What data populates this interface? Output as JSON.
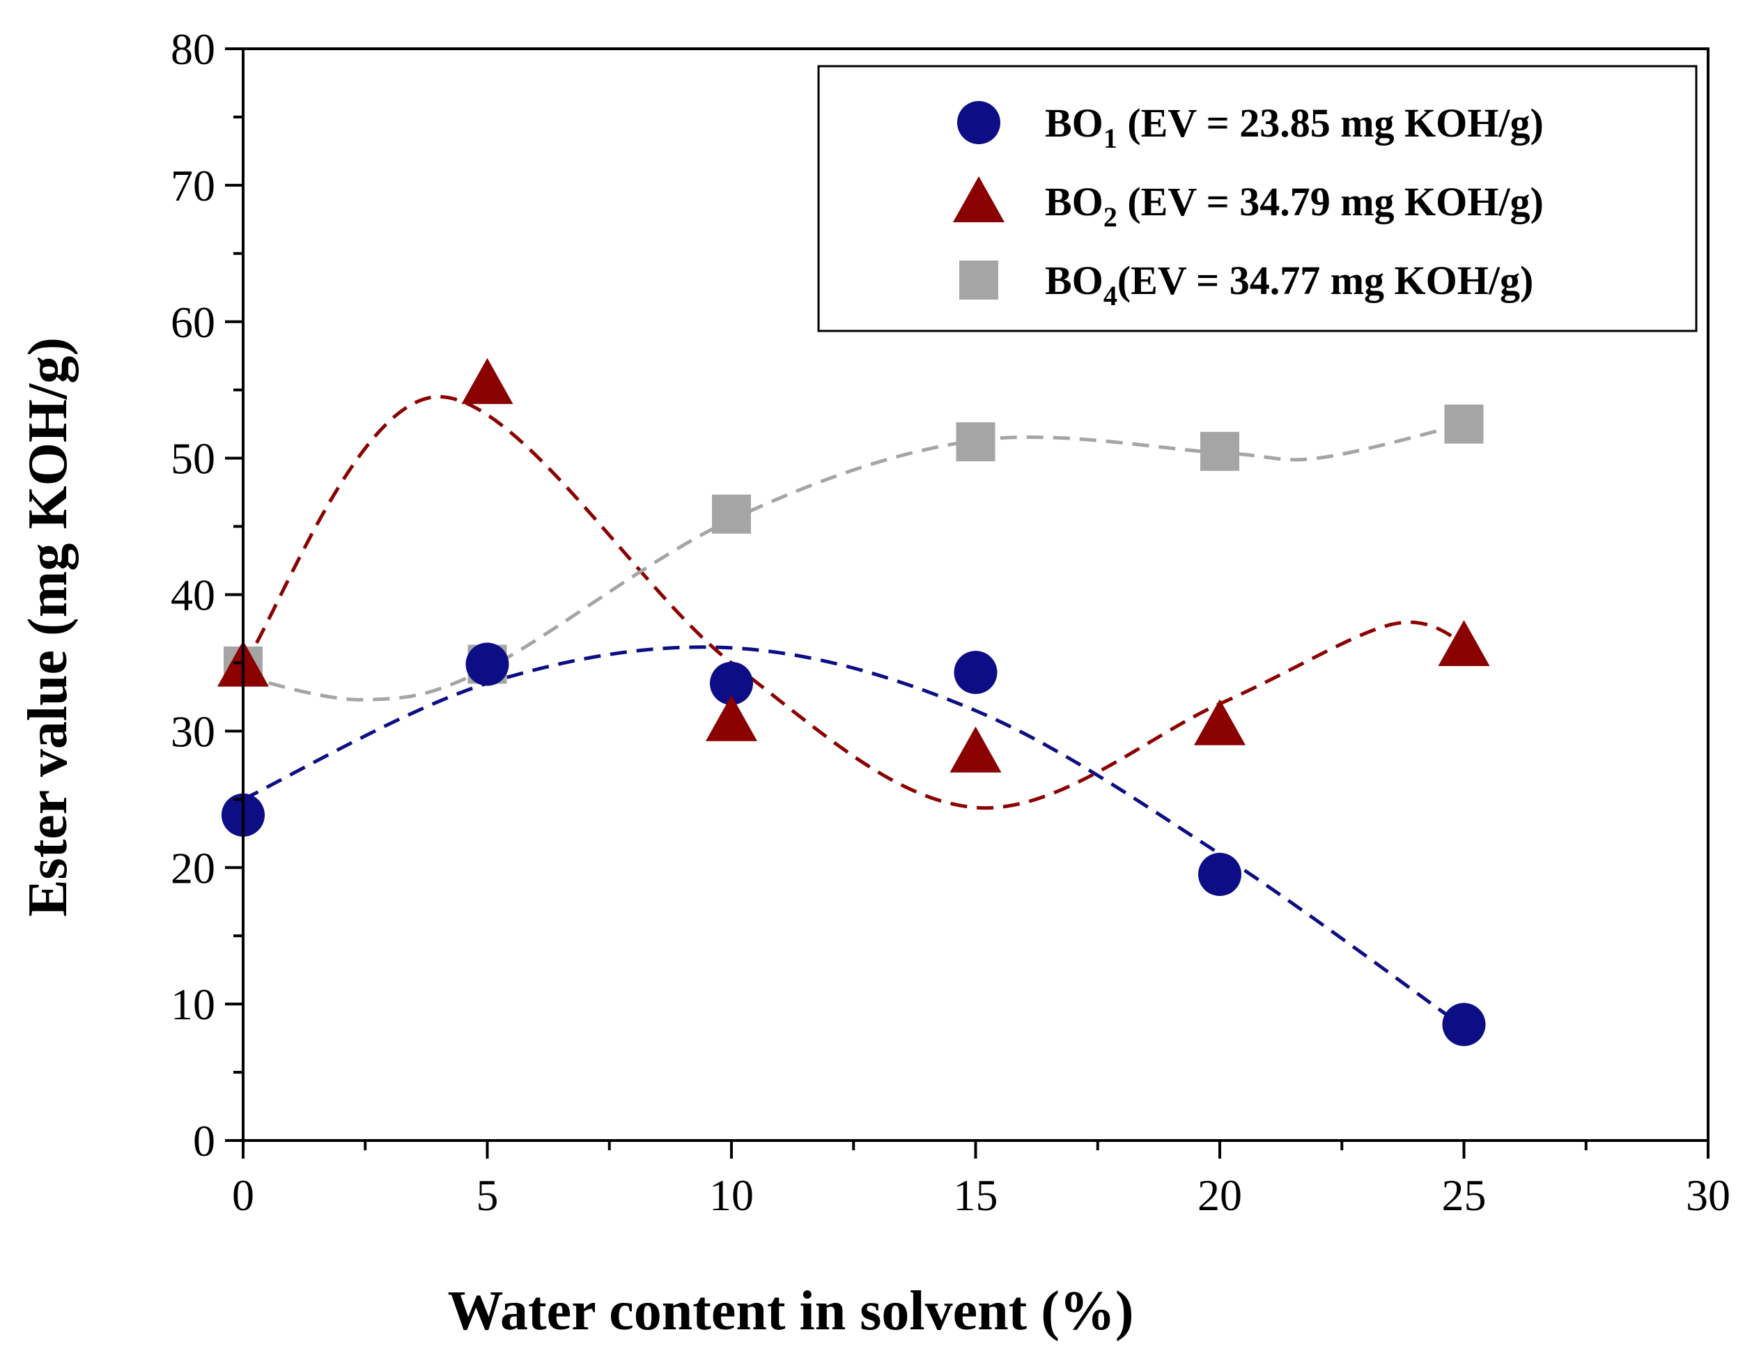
{
  "chart_data": {
    "type": "scatter",
    "xlabel": "Water content in solvent (%)",
    "ylabel": "Ester value (mg KOH/g)",
    "xlim": [
      0,
      30
    ],
    "ylim": [
      0,
      80
    ],
    "xticks": [
      0,
      5,
      10,
      15,
      20,
      25,
      30
    ],
    "yticks": [
      0,
      10,
      20,
      30,
      40,
      50,
      60,
      70,
      80
    ],
    "legend_position": "top-right",
    "grid": false,
    "series": [
      {
        "name": "BO1 (EV = 23.85 mg KOH/g)",
        "legend_base": "BO",
        "legend_sub": "1",
        "legend_rest": " (EV = 23.85 mg KOH/g)",
        "marker": "circle",
        "color": "#0d0d85",
        "x": [
          0,
          5,
          10,
          15,
          20,
          25
        ],
        "y": [
          23.85,
          34.9,
          33.5,
          34.3,
          19.5,
          8.5
        ],
        "fit": [
          [
            0,
            25
          ],
          [
            5,
            33.5
          ],
          [
            10,
            36.1
          ],
          [
            15,
            31.5
          ],
          [
            20,
            21
          ],
          [
            25,
            8.3
          ]
        ]
      },
      {
        "name": "BO2 (EV = 34.79 mg KOH/g)",
        "legend_base": "BO",
        "legend_sub": "2",
        "legend_rest": " (EV = 34.79 mg KOH/g)",
        "marker": "triangle",
        "color": "#8b0000",
        "x": [
          0,
          5,
          10,
          15,
          20,
          25
        ],
        "y": [
          34.79,
          55.5,
          30.8,
          28.5,
          30.5,
          36.3
        ],
        "fit": [
          [
            0,
            34.8
          ],
          [
            4,
            54.5
          ],
          [
            10,
            35
          ],
          [
            15,
            24.4
          ],
          [
            20,
            32
          ],
          [
            23.5,
            37.8
          ],
          [
            25,
            36.5
          ]
        ]
      },
      {
        "name": "BO4 (EV = 34.77 mg KOH/g)",
        "legend_base": "BO",
        "legend_sub": "4",
        "legend_rest": "(EV = 34.77 mg KOH/g)",
        "marker": "square",
        "color": "#a5a5a5",
        "x": [
          0,
          5,
          10,
          15,
          20,
          25
        ],
        "y": [
          34.77,
          34.9,
          45.9,
          51.2,
          50.5,
          52.5
        ],
        "fit": [
          [
            0,
            34
          ],
          [
            2.5,
            32.3
          ],
          [
            5,
            34.6
          ],
          [
            10,
            45.5
          ],
          [
            15,
            51.3
          ],
          [
            20,
            50.4
          ],
          [
            22,
            50
          ],
          [
            25,
            52.5
          ]
        ]
      }
    ]
  }
}
